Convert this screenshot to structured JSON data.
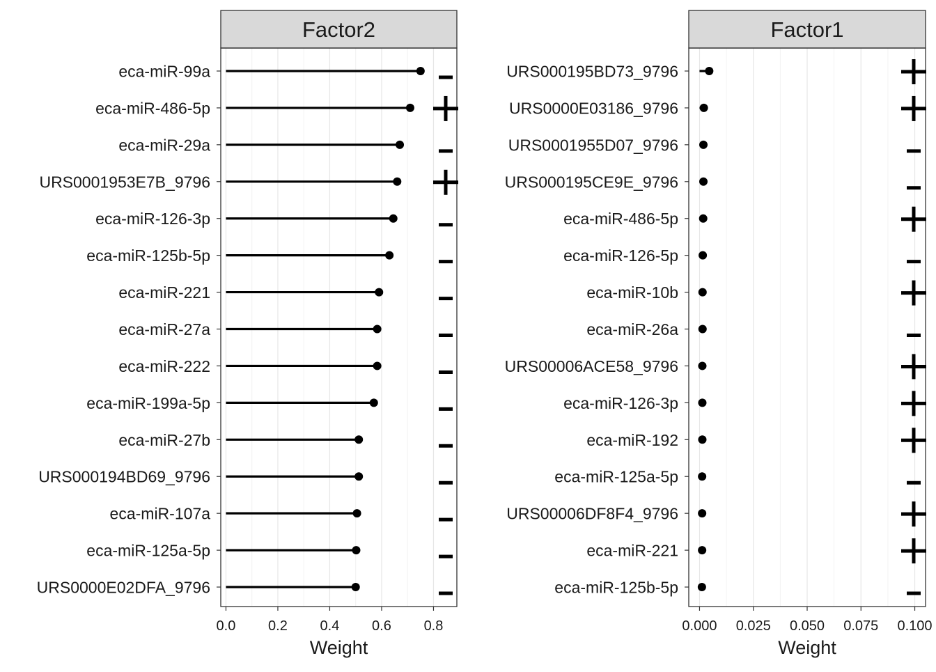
{
  "chart_data": [
    {
      "type": "lollipop",
      "strip_title": "Factor2",
      "xlabel": "Weight",
      "xlim": [
        -0.02,
        0.89
      ],
      "xticks": [
        0.0,
        0.2,
        0.4,
        0.6,
        0.8
      ],
      "xtick_labels": [
        "0.0",
        "0.2",
        "0.4",
        "0.6",
        "0.8"
      ],
      "grid": true,
      "categories": [
        "eca-miR-99a",
        "eca-miR-486-5p",
        "eca-miR-29a",
        "URS0001953E7B_9796",
        "eca-miR-126-3p",
        "eca-miR-125b-5p",
        "eca-miR-221",
        "eca-miR-27a",
        "eca-miR-222",
        "eca-miR-199a-5p",
        "eca-miR-27b",
        "URS000194BD69_9796",
        "eca-miR-107a",
        "eca-miR-125a-5p",
        "URS0000E02DFA_9796"
      ],
      "values": [
        0.75,
        0.71,
        0.67,
        0.66,
        0.645,
        0.63,
        0.59,
        0.583,
        0.583,
        0.57,
        0.512,
        0.512,
        0.505,
        0.502,
        0.5
      ],
      "signs": [
        "-",
        "+",
        "-",
        "+",
        "-",
        "-",
        "-",
        "-",
        "-",
        "-",
        "-",
        "-",
        "-",
        "-",
        "-"
      ]
    },
    {
      "type": "lollipop",
      "strip_title": "Factor1",
      "xlabel": "Weight",
      "xlim": [
        -0.005,
        0.105
      ],
      "xticks": [
        0.0,
        0.025,
        0.05,
        0.075,
        0.1
      ],
      "xtick_labels": [
        "0.000",
        "0.025",
        "0.050",
        "0.075",
        "0.100"
      ],
      "grid": true,
      "categories": [
        "URS000195BD73_9796",
        "URS0000E03186_9796",
        "URS0001955D07_9796",
        "URS000195CE9E_9796",
        "eca-miR-486-5p",
        "eca-miR-126-5p",
        "eca-miR-10b",
        "eca-miR-26a",
        "URS00006ACE58_9796",
        "eca-miR-126-3p",
        "eca-miR-192",
        "eca-miR-125a-5p",
        "URS00006DF8F4_9796",
        "eca-miR-221",
        "eca-miR-125b-5p"
      ],
      "values": [
        0.0045,
        0.002,
        0.0018,
        0.0018,
        0.0017,
        0.0015,
        0.0014,
        0.0014,
        0.0013,
        0.0013,
        0.0013,
        0.0012,
        0.0012,
        0.0012,
        0.0011
      ],
      "signs": [
        "+",
        "+",
        "-",
        "-",
        "+",
        "-",
        "+",
        "-",
        "+",
        "+",
        "+",
        "-",
        "+",
        "+",
        "-"
      ]
    }
  ]
}
